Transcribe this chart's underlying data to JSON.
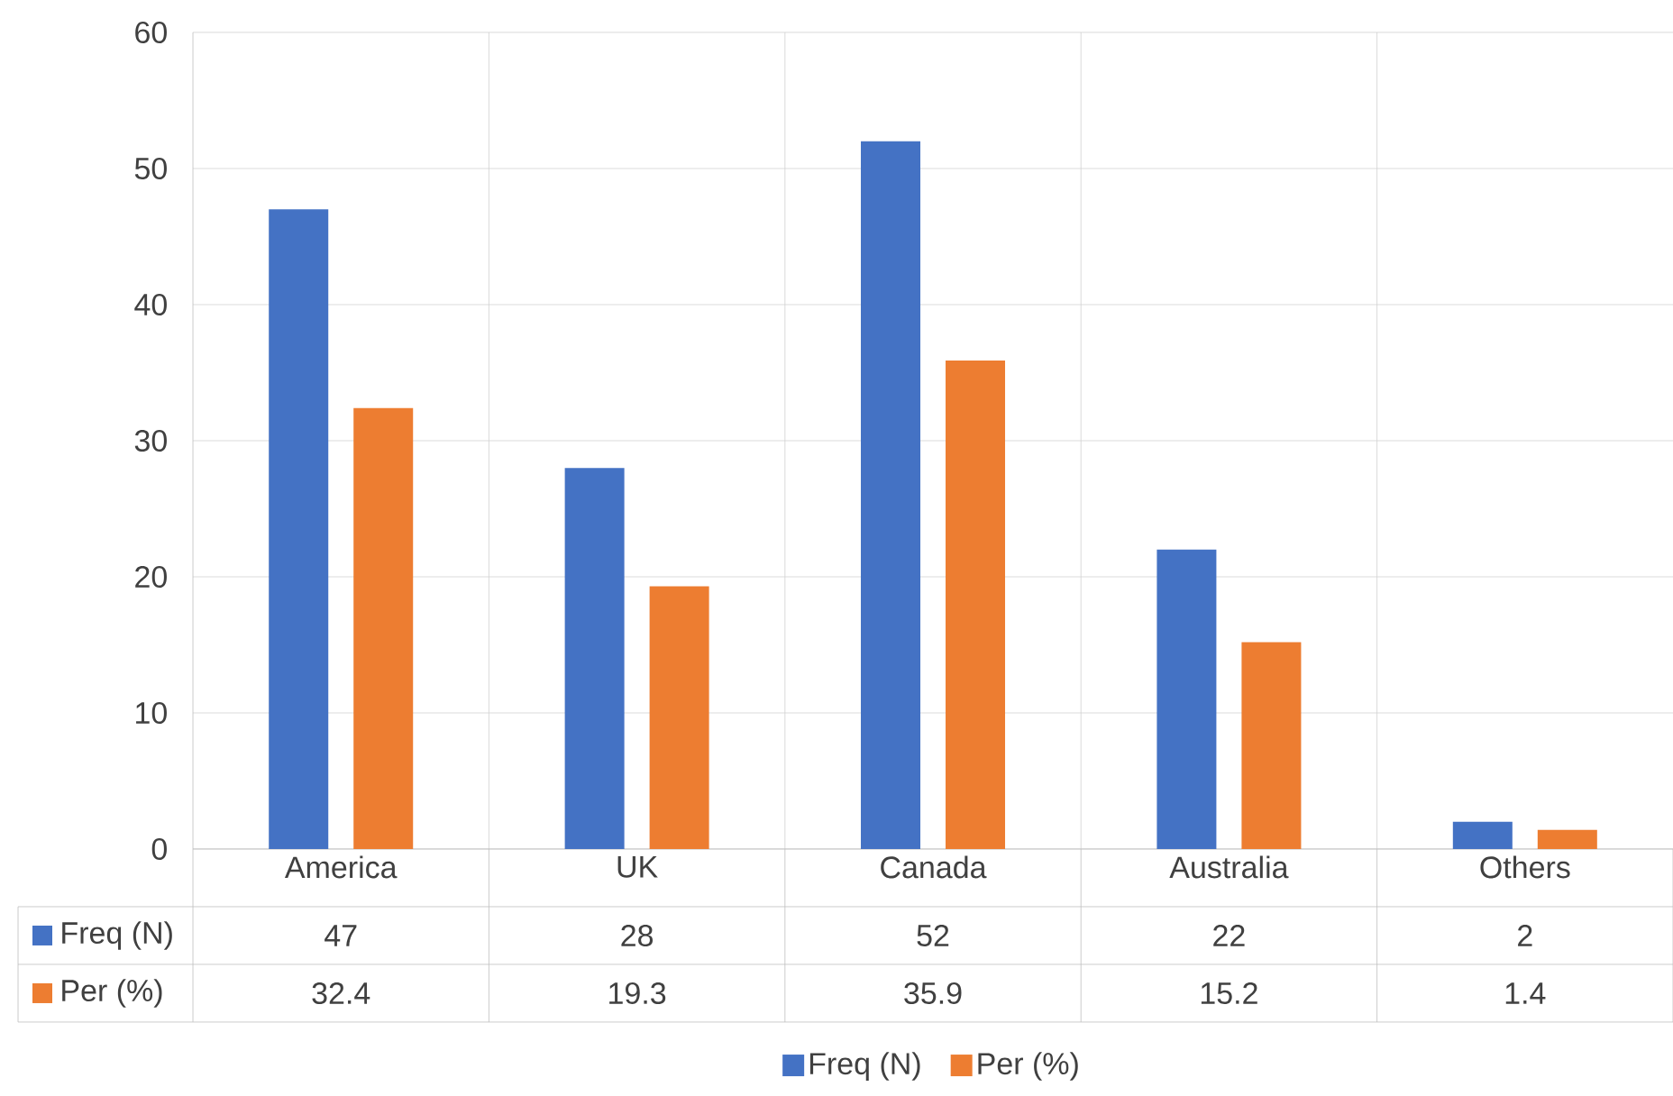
{
  "chart_data": {
    "type": "bar",
    "categories": [
      "America",
      "UK",
      "Canada",
      "Australia",
      "Others"
    ],
    "series": [
      {
        "name": "Freq (N)",
        "color": "#4472c4",
        "values": [
          47,
          28,
          52,
          22,
          2
        ]
      },
      {
        "name": "Per (%)",
        "color": "#ed7d31",
        "values": [
          32.4,
          19.3,
          35.9,
          15.2,
          1.4
        ]
      }
    ],
    "ylim": [
      0,
      60
    ],
    "yticks": [
      0,
      10,
      20,
      30,
      40,
      50,
      60
    ],
    "grid": true,
    "legend": "bottom",
    "data_labels": true
  }
}
